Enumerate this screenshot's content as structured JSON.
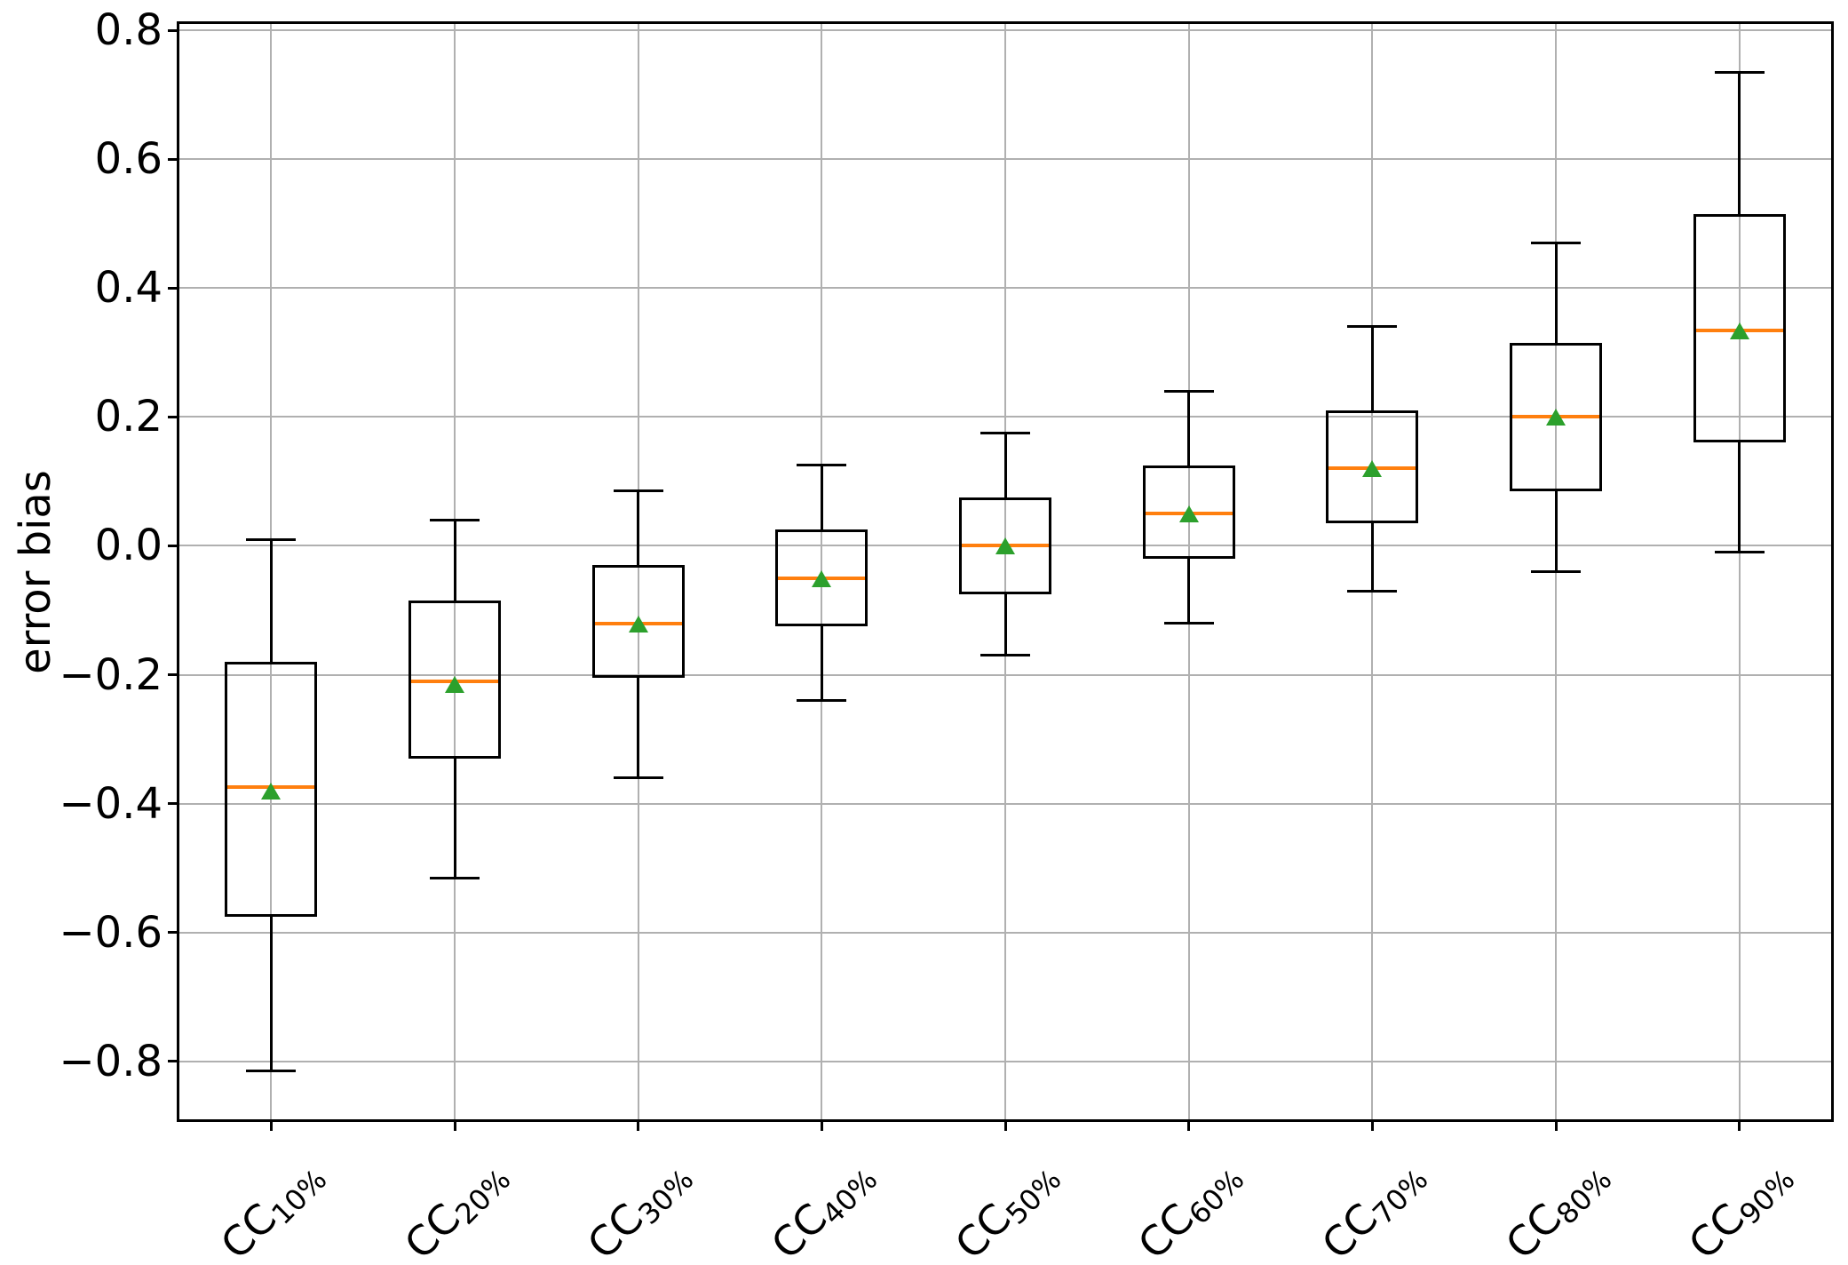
{
  "figure": {
    "background": "#ffffff"
  },
  "chart_data": {
    "type": "box",
    "title": "",
    "xlabel": "",
    "ylabel": "error bias",
    "ylim": [
      -0.89,
      0.81
    ],
    "grid": true,
    "legend": "none",
    "orientation": "vertical",
    "yticks": {
      "values": [
        0.8,
        0.6,
        0.4,
        0.2,
        0.0,
        -0.2,
        -0.4,
        -0.6,
        -0.8
      ],
      "labels": [
        "0.8",
        "0.6",
        "0.4",
        "0.2",
        "0.0",
        "−0.2",
        "−0.4",
        "−0.6",
        "−0.8"
      ]
    },
    "categories": [
      {
        "label": "CC10%",
        "base": "CC",
        "sub": "10%"
      },
      {
        "label": "CC20%",
        "base": "CC",
        "sub": "20%"
      },
      {
        "label": "CC30%",
        "base": "CC",
        "sub": "30%"
      },
      {
        "label": "CC40%",
        "base": "CC",
        "sub": "40%"
      },
      {
        "label": "CC50%",
        "base": "CC",
        "sub": "50%"
      },
      {
        "label": "CC60%",
        "base": "CC",
        "sub": "60%"
      },
      {
        "label": "CC70%",
        "base": "CC",
        "sub": "70%"
      },
      {
        "label": "CC80%",
        "base": "CC",
        "sub": "80%"
      },
      {
        "label": "CC90%",
        "base": "CC",
        "sub": "90%"
      }
    ],
    "series": [
      {
        "label": "CC10%",
        "whisker_low": -0.815,
        "q1": -0.575,
        "median": -0.375,
        "q3": -0.18,
        "whisker_high": 0.01,
        "mean": -0.38
      },
      {
        "label": "CC20%",
        "whisker_low": -0.515,
        "q1": -0.33,
        "median": -0.21,
        "q3": -0.085,
        "whisker_high": 0.04,
        "mean": -0.215
      },
      {
        "label": "CC30%",
        "whisker_low": -0.36,
        "q1": -0.205,
        "median": -0.12,
        "q3": -0.03,
        "whisker_high": 0.085,
        "mean": -0.12
      },
      {
        "label": "CC40%",
        "whisker_low": -0.24,
        "q1": -0.125,
        "median": -0.05,
        "q3": 0.025,
        "whisker_high": 0.125,
        "mean": -0.05
      },
      {
        "label": "CC50%",
        "whisker_low": -0.17,
        "q1": -0.075,
        "median": 0.0,
        "q3": 0.075,
        "whisker_high": 0.175,
        "mean": 0.0
      },
      {
        "label": "CC60%",
        "whisker_low": -0.12,
        "q1": -0.02,
        "median": 0.05,
        "q3": 0.125,
        "whisker_high": 0.24,
        "mean": 0.05
      },
      {
        "label": "CC70%",
        "whisker_low": -0.07,
        "q1": 0.035,
        "median": 0.12,
        "q3": 0.21,
        "whisker_high": 0.34,
        "mean": 0.12
      },
      {
        "label": "CC80%",
        "whisker_low": -0.04,
        "q1": 0.085,
        "median": 0.2,
        "q3": 0.315,
        "whisker_high": 0.47,
        "mean": 0.2
      },
      {
        "label": "CC90%",
        "whisker_low": -0.01,
        "q1": 0.16,
        "median": 0.335,
        "q3": 0.515,
        "whisker_high": 0.735,
        "mean": 0.335
      }
    ],
    "colors": {
      "box": "#000000",
      "whisker": "#000000",
      "median": "#ff7f0e",
      "mean_marker": "#2ca02c",
      "grid": "#b0b0b0",
      "spine": "#000000",
      "text": "#000000",
      "background": "#ffffff"
    },
    "mean_marker_shape": "triangle-up"
  },
  "layout_labels": {
    "figure_name": "error-bias-boxplot"
  }
}
